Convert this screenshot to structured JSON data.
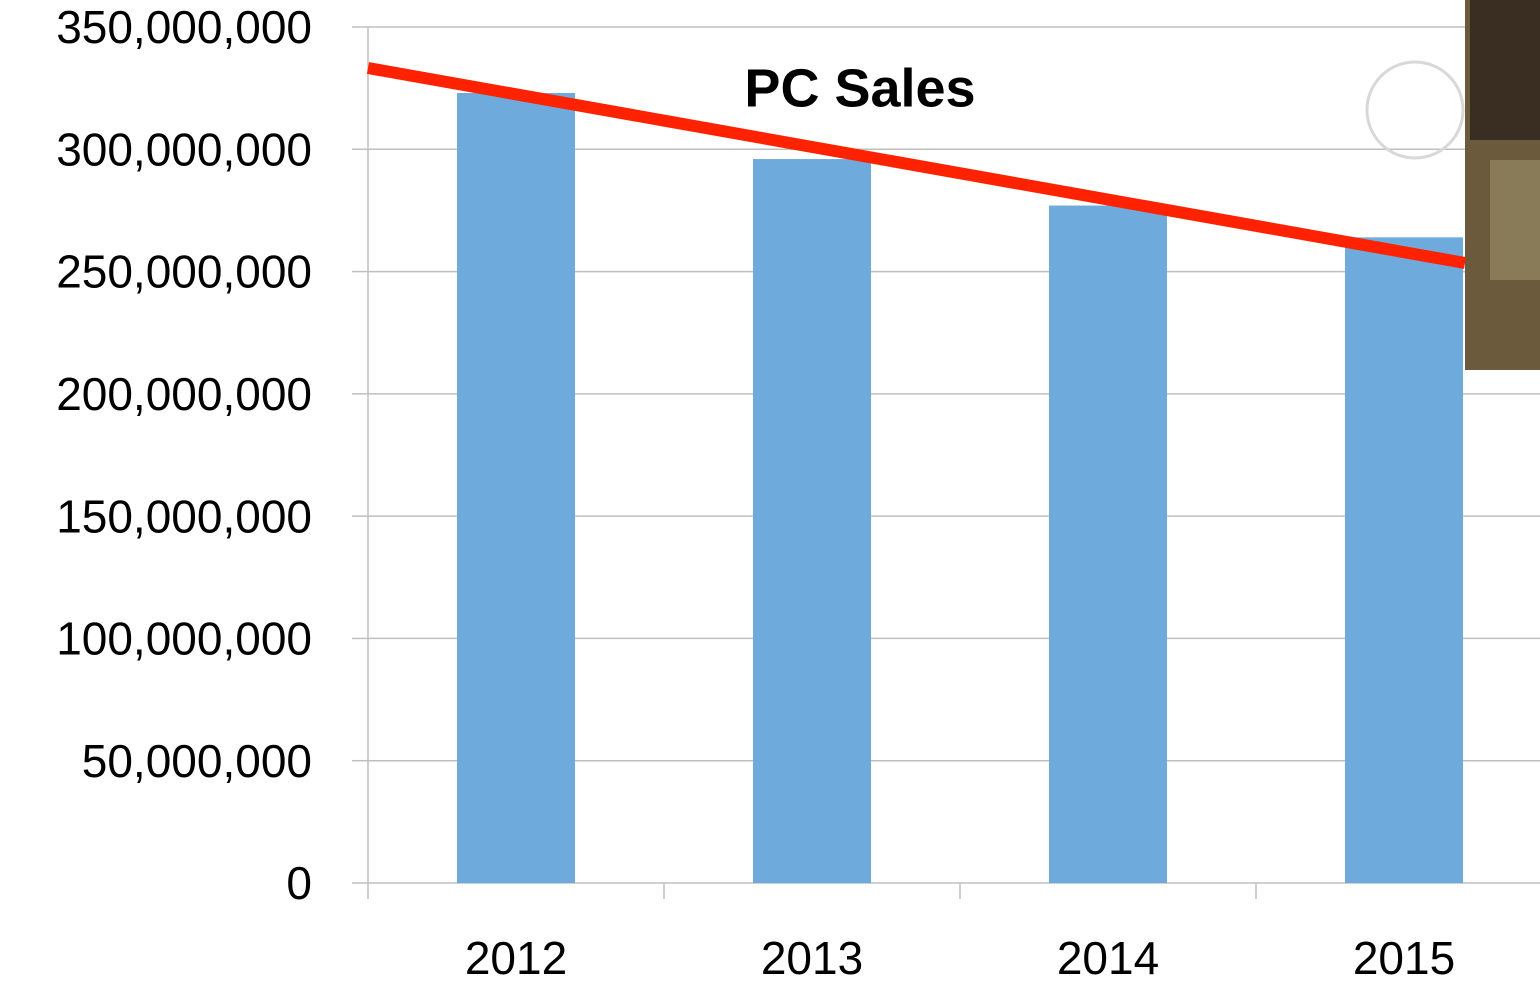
{
  "chart_data": {
    "type": "bar",
    "title": "PC Sales",
    "categories": [
      "2012",
      "2013",
      "2014",
      "2015"
    ],
    "values": [
      323000000,
      296000000,
      277000000,
      264000000
    ],
    "color": "#6eaadb",
    "ylim": [
      0,
      350000000
    ],
    "yticks": [
      0,
      {
        "value": 50000000,
        "label": "50,000,000"
      },
      {
        "value": 100000000,
        "label": "100,000,000"
      },
      {
        "value": 150000000,
        "label": "150,000,000"
      },
      {
        "value": 200000000,
        "label": "200,000,000"
      },
      {
        "value": 250000000,
        "label": "250,000,000"
      },
      {
        "value": 300000000,
        "label": "300,000,000"
      },
      {
        "value": 350000000,
        "label": "350,000,000"
      }
    ],
    "grid": true
  }
}
